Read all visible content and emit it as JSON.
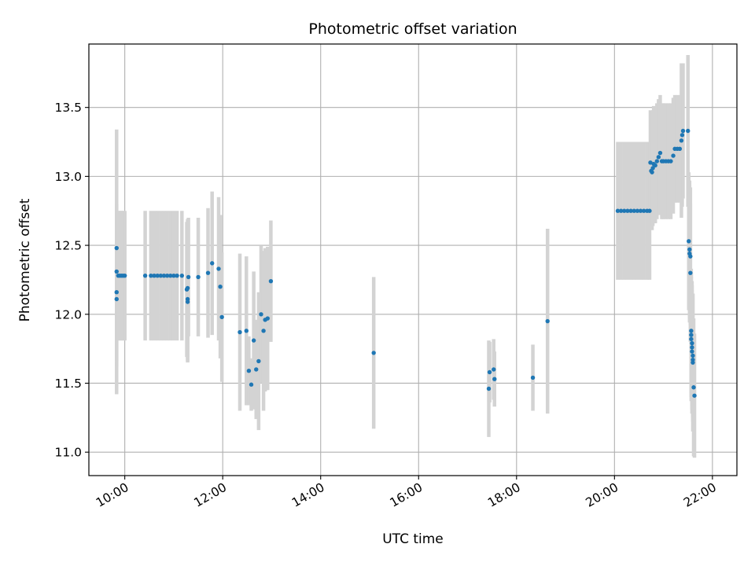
{
  "chart_data": {
    "type": "scatter",
    "title": "Photometric offset variation",
    "xlabel": "UTC time",
    "ylabel": "Photometric offset",
    "grid": true,
    "xlim": [
      "09:16",
      "22:30"
    ],
    "ylim": [
      10.83,
      13.96
    ],
    "x_ticks": [
      "10:00",
      "12:00",
      "14:00",
      "16:00",
      "18:00",
      "20:00",
      "22:00"
    ],
    "y_ticks": [
      "11.0",
      "11.5",
      "12.0",
      "12.5",
      "13.0",
      "13.5"
    ],
    "colors": {
      "points": "#1f77b4",
      "errorbars": "#d3d3d3",
      "grid": "#b0b0b0"
    },
    "points": [
      {
        "x": "09:50",
        "y": 12.31,
        "yerr": 0.15
      },
      {
        "x": "09:50",
        "y": 12.48,
        "yerr": 0.86
      },
      {
        "x": "09:50",
        "y": 12.11,
        "yerr": 0.69
      },
      {
        "x": "09:50",
        "y": 12.16,
        "yerr": 0.5
      },
      {
        "x": "09:52",
        "y": 12.28,
        "yerr": 0.47
      },
      {
        "x": "09:54",
        "y": 12.28,
        "yerr": 0.47
      },
      {
        "x": "09:56",
        "y": 12.28,
        "yerr": 0.47
      },
      {
        "x": "09:58",
        "y": 12.28,
        "yerr": 0.47
      },
      {
        "x": "10:00",
        "y": 12.28,
        "yerr": 0.47
      },
      {
        "x": "10:25",
        "y": 12.28,
        "yerr": 0.47
      },
      {
        "x": "10:32",
        "y": 12.28,
        "yerr": 0.47
      },
      {
        "x": "10:36",
        "y": 12.28,
        "yerr": 0.47
      },
      {
        "x": "10:40",
        "y": 12.28,
        "yerr": 0.47
      },
      {
        "x": "10:44",
        "y": 12.28,
        "yerr": 0.47
      },
      {
        "x": "10:48",
        "y": 12.28,
        "yerr": 0.47
      },
      {
        "x": "10:52",
        "y": 12.28,
        "yerr": 0.47
      },
      {
        "x": "10:56",
        "y": 12.28,
        "yerr": 0.47
      },
      {
        "x": "11:00",
        "y": 12.28,
        "yerr": 0.47
      },
      {
        "x": "11:04",
        "y": 12.28,
        "yerr": 0.47
      },
      {
        "x": "11:10",
        "y": 12.28,
        "yerr": 0.47
      },
      {
        "x": "11:16",
        "y": 12.18,
        "yerr": 0.49
      },
      {
        "x": "11:17",
        "y": 12.19,
        "yerr": 0.5
      },
      {
        "x": "11:17",
        "y": 12.11,
        "yerr": 0.45
      },
      {
        "x": "11:17",
        "y": 12.09,
        "yerr": 0.44
      },
      {
        "x": "11:18",
        "y": 12.27,
        "yerr": 0.43
      },
      {
        "x": "11:30",
        "y": 12.27,
        "yerr": 0.43
      },
      {
        "x": "11:42",
        "y": 12.3,
        "yerr": 0.47
      },
      {
        "x": "11:47",
        "y": 12.37,
        "yerr": 0.52
      },
      {
        "x": "11:55",
        "y": 12.33,
        "yerr": 0.52
      },
      {
        "x": "11:57",
        "y": 12.2,
        "yerr": 0.52
      },
      {
        "x": "11:59",
        "y": 11.98,
        "yerr": 0.47
      },
      {
        "x": "12:21",
        "y": 11.87,
        "yerr": 0.57
      },
      {
        "x": "12:29",
        "y": 11.88,
        "yerr": 0.54
      },
      {
        "x": "12:32",
        "y": 11.59,
        "yerr": 0.25
      },
      {
        "x": "12:35",
        "y": 11.49,
        "yerr": 0.19
      },
      {
        "x": "12:38",
        "y": 11.81,
        "yerr": 0.5
      },
      {
        "x": "12:41",
        "y": 11.6,
        "yerr": 0.36
      },
      {
        "x": "12:44",
        "y": 11.66,
        "yerr": 0.5
      },
      {
        "x": "12:47",
        "y": 12.0,
        "yerr": 0.5
      },
      {
        "x": "12:50",
        "y": 11.88,
        "yerr": 0.58
      },
      {
        "x": "12:52",
        "y": 11.96,
        "yerr": 0.52
      },
      {
        "x": "12:55",
        "y": 11.97,
        "yerr": 0.52
      },
      {
        "x": "12:59",
        "y": 12.24,
        "yerr": 0.44
      },
      {
        "x": "15:05",
        "y": 11.72,
        "yerr": 0.55
      },
      {
        "x": "17:26",
        "y": 11.46,
        "yerr": 0.35
      },
      {
        "x": "17:27",
        "y": 11.58,
        "yerr": 0.22
      },
      {
        "x": "17:32",
        "y": 11.6,
        "yerr": 0.22
      },
      {
        "x": "17:33",
        "y": 11.53,
        "yerr": 0.2
      },
      {
        "x": "18:20",
        "y": 11.54,
        "yerr": 0.24
      },
      {
        "x": "18:38",
        "y": 11.95,
        "yerr": 0.67
      },
      {
        "x": "20:04",
        "y": 12.75,
        "yerr": 0.5
      },
      {
        "x": "20:08",
        "y": 12.75,
        "yerr": 0.5
      },
      {
        "x": "20:12",
        "y": 12.75,
        "yerr": 0.5
      },
      {
        "x": "20:16",
        "y": 12.75,
        "yerr": 0.5
      },
      {
        "x": "20:20",
        "y": 12.75,
        "yerr": 0.5
      },
      {
        "x": "20:24",
        "y": 12.75,
        "yerr": 0.5
      },
      {
        "x": "20:28",
        "y": 12.75,
        "yerr": 0.5
      },
      {
        "x": "20:32",
        "y": 12.75,
        "yerr": 0.5
      },
      {
        "x": "20:36",
        "y": 12.75,
        "yerr": 0.5
      },
      {
        "x": "20:40",
        "y": 12.75,
        "yerr": 0.5
      },
      {
        "x": "20:43",
        "y": 12.75,
        "yerr": 0.5
      },
      {
        "x": "20:44",
        "y": 13.1,
        "yerr": 0.38
      },
      {
        "x": "20:45",
        "y": 13.04,
        "yerr": 0.42
      },
      {
        "x": "20:46",
        "y": 13.03,
        "yerr": 0.42
      },
      {
        "x": "20:47",
        "y": 13.06,
        "yerr": 0.42
      },
      {
        "x": "20:48",
        "y": 13.09,
        "yerr": 0.42
      },
      {
        "x": "20:50",
        "y": 13.08,
        "yerr": 0.42
      },
      {
        "x": "20:52",
        "y": 13.11,
        "yerr": 0.42
      },
      {
        "x": "20:54",
        "y": 13.14,
        "yerr": 0.42
      },
      {
        "x": "20:56",
        "y": 13.17,
        "yerr": 0.42
      },
      {
        "x": "20:58",
        "y": 13.11,
        "yerr": 0.42
      },
      {
        "x": "21:00",
        "y": 13.11,
        "yerr": 0.42
      },
      {
        "x": "21:03",
        "y": 13.11,
        "yerr": 0.42
      },
      {
        "x": "21:06",
        "y": 13.11,
        "yerr": 0.42
      },
      {
        "x": "21:09",
        "y": 13.11,
        "yerr": 0.42
      },
      {
        "x": "21:12",
        "y": 13.15,
        "yerr": 0.42
      },
      {
        "x": "21:14",
        "y": 13.2,
        "yerr": 0.39
      },
      {
        "x": "21:17",
        "y": 13.2,
        "yerr": 0.39
      },
      {
        "x": "21:20",
        "y": 13.2,
        "yerr": 0.39
      },
      {
        "x": "21:22",
        "y": 13.26,
        "yerr": 0.56
      },
      {
        "x": "21:23",
        "y": 13.3,
        "yerr": 0.52
      },
      {
        "x": "21:24",
        "y": 13.33,
        "yerr": 0.49
      },
      {
        "x": "21:30",
        "y": 13.33,
        "yerr": 0.55
      },
      {
        "x": "21:31",
        "y": 12.53,
        "yerr": 0.5
      },
      {
        "x": "21:32",
        "y": 12.47,
        "yerr": 0.5
      },
      {
        "x": "21:32",
        "y": 12.44,
        "yerr": 0.5
      },
      {
        "x": "21:33",
        "y": 12.42,
        "yerr": 0.5
      },
      {
        "x": "21:33",
        "y": 12.3,
        "yerr": 0.5
      },
      {
        "x": "21:34",
        "y": 11.88,
        "yerr": 0.45
      },
      {
        "x": "21:34",
        "y": 11.85,
        "yerr": 0.45
      },
      {
        "x": "21:34",
        "y": 11.82,
        "yerr": 0.45
      },
      {
        "x": "21:35",
        "y": 11.79,
        "yerr": 0.45
      },
      {
        "x": "21:35",
        "y": 11.76,
        "yerr": 0.45
      },
      {
        "x": "21:35",
        "y": 11.73,
        "yerr": 0.45
      },
      {
        "x": "21:36",
        "y": 11.7,
        "yerr": 0.45
      },
      {
        "x": "21:36",
        "y": 11.67,
        "yerr": 0.45
      },
      {
        "x": "21:36",
        "y": 11.65,
        "yerr": 0.5
      },
      {
        "x": "21:37",
        "y": 11.47,
        "yerr": 0.5
      },
      {
        "x": "21:38",
        "y": 11.41,
        "yerr": 0.45
      }
    ]
  }
}
